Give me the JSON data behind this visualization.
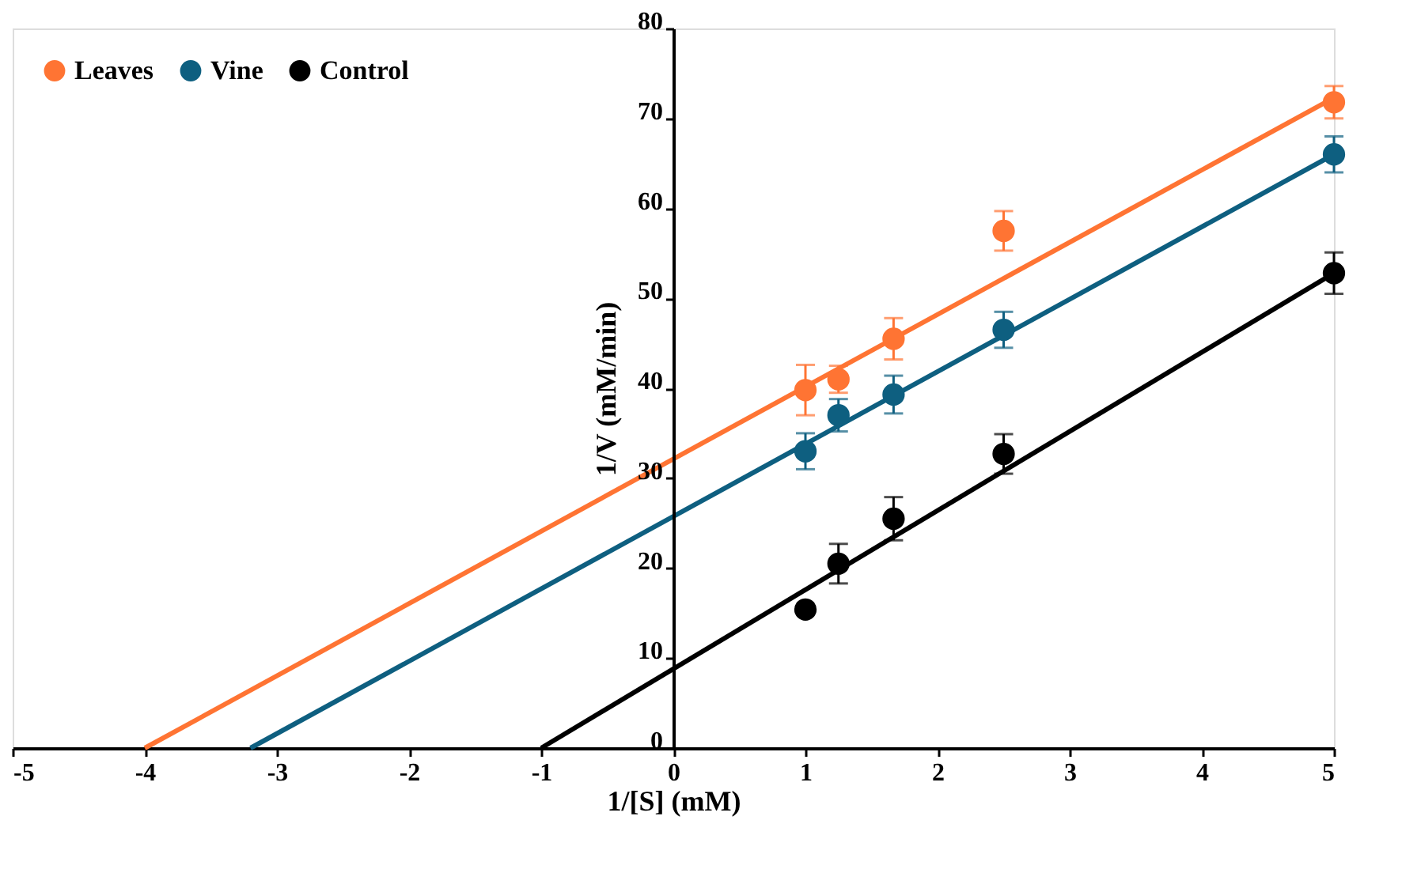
{
  "chart_data": {
    "type": "scatter",
    "xlabel": "1/[S] (mM)",
    "ylabel": "1/V (mM/min)",
    "xlim": [
      -5,
      5
    ],
    "xticks": [
      -5,
      -4,
      -3,
      -2,
      -1,
      0,
      1,
      2,
      3,
      4,
      5
    ],
    "ylim": [
      0,
      80
    ],
    "yticks": [
      0,
      10,
      20,
      30,
      40,
      50,
      60,
      70,
      80
    ],
    "grid": false,
    "legend": "top left",
    "marker": "circle",
    "series": [
      {
        "name": "Leaves",
        "color": "#ff7433",
        "x": [
          1,
          1.25,
          1.667,
          2.5,
          5
        ],
        "values": [
          39.8,
          41,
          45.5,
          57.5,
          71.8
        ],
        "errors": [
          2.8,
          1.5,
          2.3,
          2.2,
          1.8
        ]
      },
      {
        "name": "Vine",
        "color": "#0e5f80",
        "x": [
          1,
          1.25,
          1.667,
          2.5,
          5
        ],
        "values": [
          33,
          37,
          39.3,
          46.5,
          66
        ],
        "errors": [
          2,
          1.8,
          2.1,
          2,
          2
        ]
      },
      {
        "name": "Control",
        "color": "#000000",
        "x": [
          1,
          1.25,
          1.667,
          2.5,
          5
        ],
        "values": [
          15.4,
          20.5,
          25.5,
          32.7,
          52.8
        ],
        "errors": [
          null,
          2.2,
          2.4,
          2.2,
          2.3
        ]
      },
      {
        "type": "line",
        "marker": "none",
        "color": "#ff7433",
        "x": [
          -4,
          5
        ],
        "values": [
          0,
          72.3
        ]
      },
      {
        "type": "line",
        "marker": "none",
        "color": "#0e5f80",
        "x": [
          -3.2,
          5
        ],
        "values": [
          0,
          66
        ]
      },
      {
        "type": "line",
        "marker": "none",
        "color": "#000000",
        "x": [
          -1,
          5
        ],
        "values": [
          0,
          52.8
        ]
      }
    ]
  }
}
